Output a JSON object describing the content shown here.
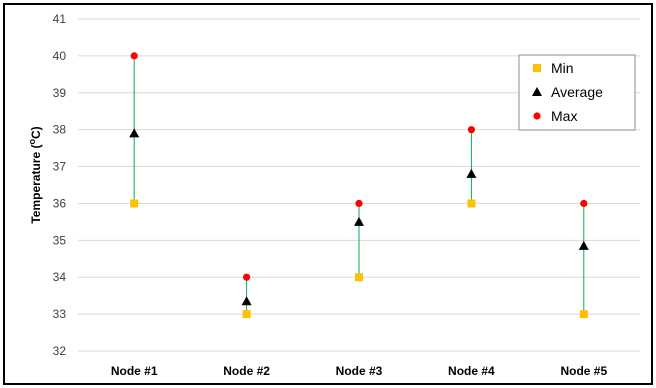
{
  "chart_data": {
    "type": "scatter",
    "title": "",
    "xlabel": "",
    "ylabel": "Temperature (°C)",
    "ylabel_parts": {
      "prefix": "Temperature (",
      "superscript": "o",
      "suffix": "C)"
    },
    "ylim": [
      32,
      41
    ],
    "yticks": [
      "32",
      "33",
      "34",
      "35",
      "36",
      "37",
      "38",
      "39",
      "40",
      "41"
    ],
    "categories": [
      "Node #1",
      "Node #2",
      "Node #3",
      "Node #4",
      "Node #5"
    ],
    "series": [
      {
        "name": "Min",
        "marker": "square",
        "color": "#FFC000",
        "values": [
          36,
          33,
          34,
          36,
          33
        ]
      },
      {
        "name": "Average",
        "marker": "triangle",
        "color": "#000000",
        "values": [
          37.9,
          33.35,
          35.5,
          36.8,
          34.85
        ]
      },
      {
        "name": "Max",
        "marker": "circle",
        "color": "#FF0000",
        "values": [
          40,
          34,
          36,
          38,
          36
        ]
      }
    ],
    "range_line_color": "#00B050",
    "grid": true,
    "legend": "top-right"
  }
}
